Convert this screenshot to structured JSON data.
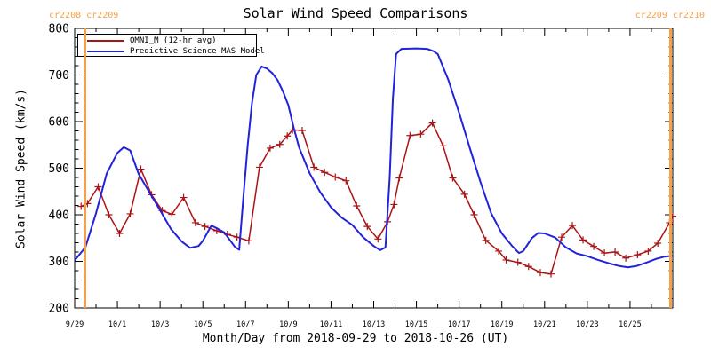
{
  "chart_data": {
    "type": "line",
    "title": "Solar Wind Speed Comparisons",
    "xlabel": "Month/Day from 2018-09-29 to 2018-10-26 (UT)",
    "ylabel": "Solar Wind Speed (km/s)",
    "ylim": [
      200,
      800
    ],
    "y_major_tick_step": 100,
    "y_minor_tick_step": 20,
    "x_range_days": 28,
    "x_minor_tick_step_days": 1,
    "x_label_day_step": 2,
    "x_tick_labels": [
      "9/29",
      "10/1",
      "10/3",
      "10/5",
      "10/7",
      "10/9",
      "10/11",
      "10/13",
      "10/15",
      "10/17",
      "10/19",
      "10/21",
      "10/23",
      "10/25"
    ],
    "grid": "off",
    "legend_position": "top-left",
    "annotations": {
      "left_label": "cr2208 cr2209",
      "right_label": "cr2209 cr2210",
      "vline_days": [
        0.46,
        27.9
      ],
      "color": "#F5A14B"
    },
    "series": [
      {
        "name": "OMNI_M (12-hr avg)",
        "color": "#AA1414",
        "marker": "plus",
        "points": [
          [
            0.3,
            418
          ],
          [
            0.6,
            424
          ],
          [
            1.1,
            460
          ],
          [
            1.6,
            400
          ],
          [
            2.1,
            360
          ],
          [
            2.6,
            402
          ],
          [
            3.1,
            498
          ],
          [
            3.6,
            443
          ],
          [
            4.1,
            409
          ],
          [
            4.55,
            401
          ],
          [
            5.1,
            437
          ],
          [
            5.65,
            383
          ],
          [
            6.1,
            375
          ],
          [
            6.65,
            366
          ],
          [
            7.15,
            358
          ],
          [
            7.6,
            352
          ],
          [
            8.15,
            344
          ],
          [
            8.65,
            502
          ],
          [
            9.15,
            543
          ],
          [
            9.6,
            551
          ],
          [
            9.95,
            569
          ],
          [
            10.2,
            582
          ],
          [
            10.65,
            581
          ],
          [
            11.2,
            502
          ],
          [
            11.7,
            491
          ],
          [
            12.2,
            481
          ],
          [
            12.7,
            473
          ],
          [
            13.2,
            419
          ],
          [
            13.7,
            375
          ],
          [
            14.2,
            348
          ],
          [
            14.65,
            385
          ],
          [
            14.95,
            422
          ],
          [
            15.2,
            479
          ],
          [
            15.7,
            570
          ],
          [
            16.2,
            573
          ],
          [
            16.75,
            597
          ],
          [
            17.25,
            548
          ],
          [
            17.7,
            479
          ],
          [
            18.25,
            444
          ],
          [
            18.7,
            400
          ],
          [
            19.25,
            345
          ],
          [
            19.85,
            322
          ],
          [
            20.2,
            303
          ],
          [
            20.75,
            298
          ],
          [
            21.25,
            289
          ],
          [
            21.8,
            276
          ],
          [
            22.3,
            273
          ],
          [
            22.8,
            352
          ],
          [
            23.3,
            377
          ],
          [
            23.8,
            346
          ],
          [
            24.3,
            332
          ],
          [
            24.8,
            318
          ],
          [
            25.3,
            320
          ],
          [
            25.8,
            307
          ],
          [
            26.35,
            314
          ],
          [
            26.85,
            322
          ],
          [
            27.3,
            339
          ],
          [
            27.85,
            383
          ],
          [
            28,
            397
          ]
        ]
      },
      {
        "name": "Predictive Science MAS Model",
        "color": "#2222DD",
        "marker": "none",
        "points": [
          [
            0,
            302
          ],
          [
            0.5,
            330
          ],
          [
            1,
            403
          ],
          [
            1.5,
            489
          ],
          [
            2,
            533
          ],
          [
            2.3,
            545
          ],
          [
            2.6,
            538
          ],
          [
            3,
            487
          ],
          [
            3.5,
            448
          ],
          [
            4,
            410
          ],
          [
            4.5,
            370
          ],
          [
            5,
            343
          ],
          [
            5.4,
            329
          ],
          [
            5.8,
            333
          ],
          [
            6,
            344
          ],
          [
            6.4,
            377
          ],
          [
            6.7,
            370
          ],
          [
            7,
            362
          ],
          [
            7.5,
            331
          ],
          [
            7.7,
            325
          ],
          [
            7.9,
            440
          ],
          [
            8.1,
            550
          ],
          [
            8.3,
            640
          ],
          [
            8.5,
            700
          ],
          [
            8.75,
            718
          ],
          [
            9,
            714
          ],
          [
            9.25,
            704
          ],
          [
            9.5,
            689
          ],
          [
            9.75,
            665
          ],
          [
            10,
            635
          ],
          [
            10.25,
            587
          ],
          [
            10.5,
            545
          ],
          [
            11,
            489
          ],
          [
            11.5,
            448
          ],
          [
            12,
            416
          ],
          [
            12.5,
            394
          ],
          [
            13,
            378
          ],
          [
            13.5,
            352
          ],
          [
            14,
            333
          ],
          [
            14.3,
            324
          ],
          [
            14.55,
            330
          ],
          [
            14.75,
            480
          ],
          [
            14.9,
            650
          ],
          [
            15.05,
            745
          ],
          [
            15.3,
            756
          ],
          [
            16,
            757
          ],
          [
            16.5,
            756
          ],
          [
            16.8,
            751
          ],
          [
            17,
            745
          ],
          [
            17.5,
            689
          ],
          [
            18,
            619
          ],
          [
            18.5,
            543
          ],
          [
            19,
            470
          ],
          [
            19.5,
            403
          ],
          [
            20,
            360
          ],
          [
            20.5,
            332
          ],
          [
            20.8,
            318
          ],
          [
            21,
            322
          ],
          [
            21.4,
            350
          ],
          [
            21.7,
            361
          ],
          [
            22,
            360
          ],
          [
            22.5,
            351
          ],
          [
            23,
            330
          ],
          [
            23.5,
            317
          ],
          [
            24,
            311
          ],
          [
            24.5,
            303
          ],
          [
            25,
            296
          ],
          [
            25.5,
            290
          ],
          [
            25.9,
            287
          ],
          [
            26.3,
            290
          ],
          [
            26.8,
            298
          ],
          [
            27.2,
            305
          ],
          [
            27.6,
            310
          ],
          [
            28,
            312
          ]
        ]
      }
    ]
  }
}
